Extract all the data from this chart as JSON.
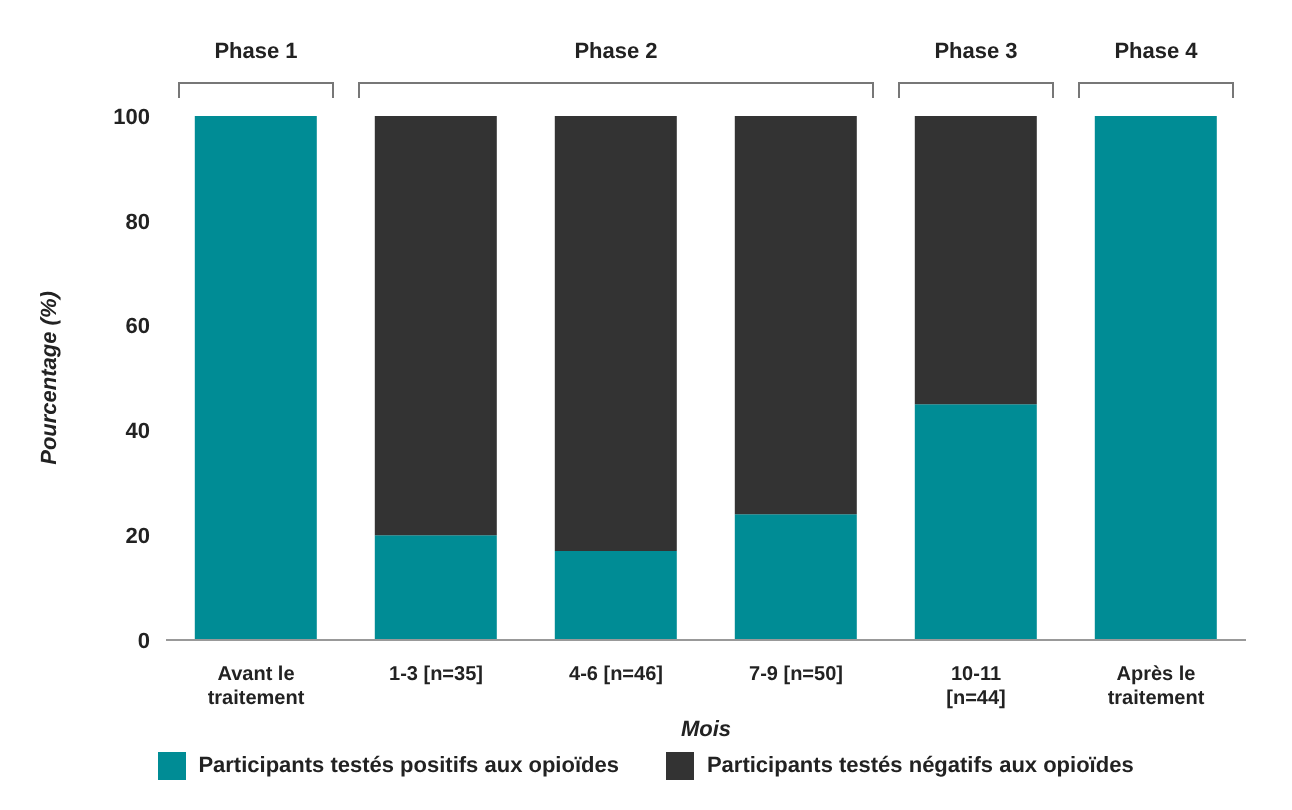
{
  "chart_data": {
    "type": "bar",
    "stacked": true,
    "xlabel": "Mois",
    "ylabel": "Pourcentage (%)",
    "categories": [
      "Avant le traitement",
      "1-3 [n=35]",
      "4-6 [n=46]",
      "7-9 [n=50]",
      "10-11 [n=44]",
      "Après le traitement"
    ],
    "series": [
      {
        "name": "Participants testés positifs aux opioïdes",
        "color": "#008c95",
        "values": [
          100,
          20,
          17,
          24,
          45,
          100
        ]
      },
      {
        "name": "Participants testés négatifs aux opioïdes",
        "color": "#333333",
        "values": [
          0,
          80,
          83,
          76,
          55,
          0
        ]
      }
    ],
    "ylim": [
      0,
      100
    ],
    "yticks": [
      0,
      20,
      40,
      60,
      80,
      100
    ],
    "legend": "bottom",
    "annotations": [
      "Phase 1",
      "Phase 2",
      "Phase 3",
      "Phase 4"
    ]
  }
}
